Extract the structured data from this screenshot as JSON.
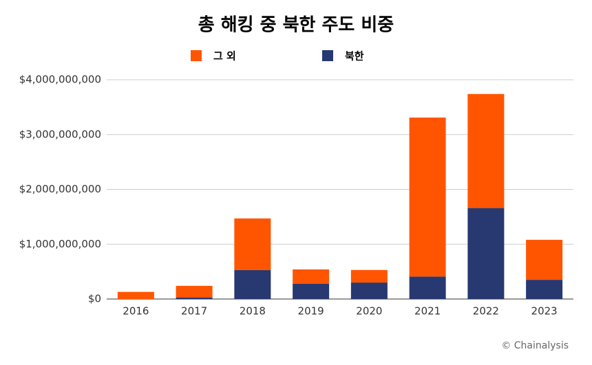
{
  "chart_data": {
    "type": "stacked_bar",
    "title": "총 해킹 중 북한 주도 비중",
    "categories": [
      "2016",
      "2017",
      "2018",
      "2019",
      "2020",
      "2021",
      "2022",
      "2023"
    ],
    "series": [
      {
        "name": "북한",
        "color": "#283870",
        "values": [
          0,
          25000000,
          530000000,
          280000000,
          300000000,
          410000000,
          1660000000,
          350000000
        ]
      },
      {
        "name": "그 외",
        "color": "#ff5500",
        "values": [
          130000000,
          215000000,
          940000000,
          260000000,
          230000000,
          2900000000,
          2080000000,
          730000000
        ]
      }
    ],
    "ylim": [
      0,
      4000000000
    ],
    "yticks": [
      {
        "value": 0,
        "label": "$0"
      },
      {
        "value": 1000000000,
        "label": "$1,000,000,000"
      },
      {
        "value": 2000000000,
        "label": "$2,000,000,000"
      },
      {
        "value": 3000000000,
        "label": "$3,000,000,000"
      },
      {
        "value": 4000000000,
        "label": "$4,000,000,000"
      }
    ],
    "grid": true,
    "source": "© Chainalysis"
  }
}
